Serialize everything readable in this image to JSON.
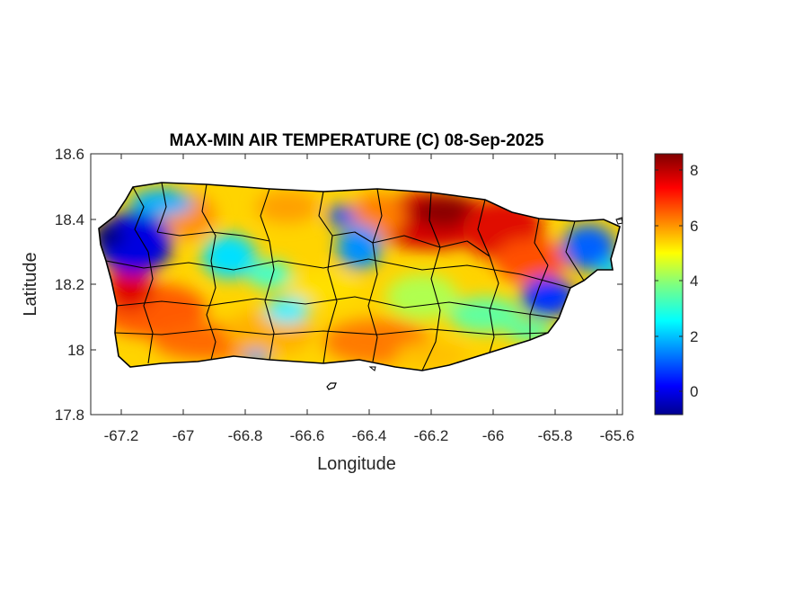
{
  "title": "MAX-MIN AIR TEMPERATURE (C) 08-Sep-2025",
  "xlabel": "Longitude",
  "ylabel": "Latitude",
  "x_ticks": [
    "-67.2",
    "-67",
    "-66.8",
    "-66.6",
    "-66.4",
    "-66.2",
    "-66",
    "-65.8",
    "-65.6"
  ],
  "y_ticks": [
    "18.6",
    "18.4",
    "18.2",
    "18",
    "17.8"
  ],
  "colorbar": {
    "ticks": [
      "8",
      "6",
      "4",
      "2",
      "0"
    ],
    "range": [
      -0.8,
      8.6
    ],
    "colormap": "jet"
  },
  "map": {
    "type": "choropleth-raster",
    "region": "Puerto Rico",
    "lon_range": [
      -67.3,
      -65.58
    ],
    "lat_range": [
      17.8,
      18.6
    ],
    "boundaries": "municipality outlines (black)",
    "hot_spots": [
      {
        "lon": -66.2,
        "lat": 18.42,
        "value": 8.3
      },
      {
        "lon": -66.05,
        "lat": 18.38,
        "value": 7.6
      },
      {
        "lon": -67.15,
        "lat": 18.14,
        "value": 7.2
      },
      {
        "lon": -66.9,
        "lat": 17.99,
        "value": 6.8
      }
    ],
    "cold_spots": [
      {
        "lon": -67.22,
        "lat": 18.35,
        "value": 0.6
      },
      {
        "lon": -65.82,
        "lat": 18.17,
        "value": 0.9
      },
      {
        "lon": -66.55,
        "lat": 18.44,
        "value": 1.5
      }
    ]
  }
}
